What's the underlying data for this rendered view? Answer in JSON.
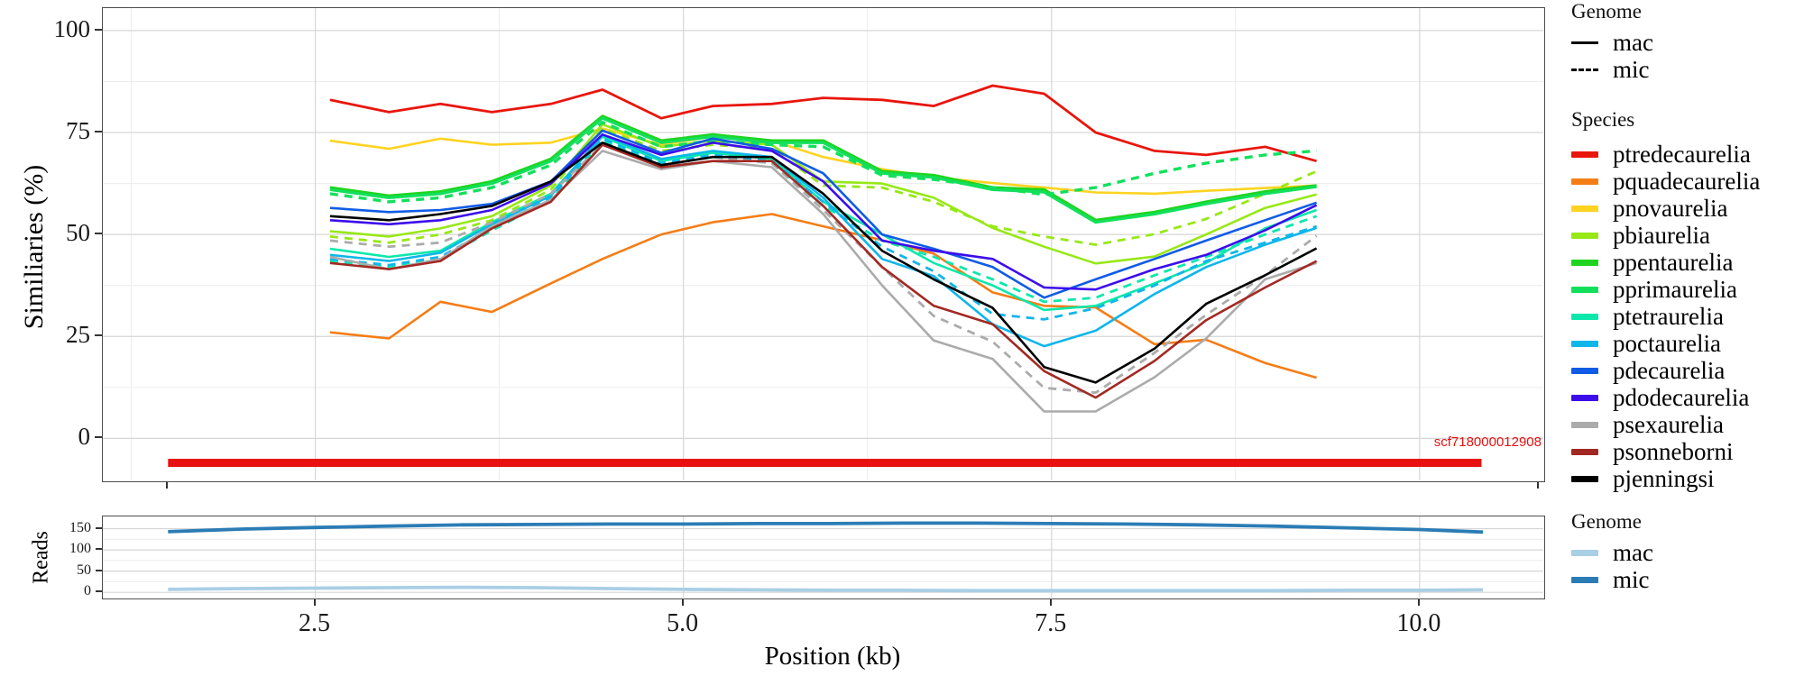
{
  "figure": {
    "y_axis_title_main": "Similiaries (%)",
    "y_axis_title_reads": "Reads",
    "x_axis_title": "Position (kb)",
    "scaffold_label": "scf718000012908",
    "colors": {
      "scaffold_bar": "#e81010",
      "panel_border": "#4d4d4d",
      "grid_major": "#d6d6d6",
      "grid_minor": "#ececec"
    }
  },
  "legends": [
    {
      "title": "Genome",
      "style": "line",
      "entries": [
        {
          "label": "mac",
          "dash": false,
          "color": "#000000"
        },
        {
          "label": "mic",
          "dash": true,
          "color": "#000000"
        }
      ]
    },
    {
      "title": "Species",
      "style": "block",
      "entries": [
        {
          "label": "ptredecaurelia",
          "color": "#e8160c"
        },
        {
          "label": "pquadecaurelia",
          "color": "#f57d15"
        },
        {
          "label": "pnovaurelia",
          "color": "#ffd320"
        },
        {
          "label": "pbiaurelia",
          "color": "#97e816"
        },
        {
          "label": "ppentaurelia",
          "color": "#1fd41f"
        },
        {
          "label": "pprimaurelia",
          "color": "#12e05c"
        },
        {
          "label": "ptetraurelia",
          "color": "#0ce8ac"
        },
        {
          "label": "poctaurelia",
          "color": "#0fb6ea"
        },
        {
          "label": "pdecaurelia",
          "color": "#105ce6"
        },
        {
          "label": "pdodecaurelia",
          "color": "#3c0ceb"
        },
        {
          "label": "psexaurelia",
          "color": "#ababab"
        },
        {
          "label": "psonneborni",
          "color": "#a22923"
        },
        {
          "label": "pjenningsi",
          "color": "#000000"
        }
      ]
    },
    {
      "title": "Genome",
      "style": "block",
      "entries": [
        {
          "label": "mac",
          "color": "#a9cfe5"
        },
        {
          "label": "mic",
          "color": "#2b7cb5"
        }
      ]
    }
  ],
  "chart_data": [
    {
      "type": "line",
      "panel": "similarity",
      "title": "",
      "xlabel": "Position (kb)",
      "ylabel": "Similiaries (%)",
      "xlim": [
        1.057,
        10.84
      ],
      "ylim": [
        -10.3,
        105.5
      ],
      "x_major_ticks": [
        2.5,
        5.0,
        7.5,
        10.0
      ],
      "x_tick_labels": [
        "2.5",
        "5.0",
        "7.5",
        "10.0"
      ],
      "x_minor_ticks": [
        1.25,
        3.75,
        6.25,
        8.75
      ],
      "y_major_ticks": [
        0,
        25,
        50,
        75,
        100
      ],
      "y_tick_labels": [
        "0",
        "25",
        "50",
        "75",
        "100"
      ],
      "y_minor_ticks": [
        12.5,
        37.5,
        62.5,
        87.5
      ],
      "extra_axis_ticks_kb": [
        1.5,
        10.81
      ],
      "grid": true,
      "legend_position": "right",
      "x": [
        2.6,
        3.0,
        3.35,
        3.7,
        4.1,
        4.45,
        4.85,
        5.2,
        5.6,
        5.95,
        6.35,
        6.7,
        7.1,
        7.45,
        7.8,
        8.2,
        8.55,
        8.95,
        9.3
      ],
      "series": [
        {
          "name": "ptredecaurelia",
          "genome": "mac",
          "color": "#e8160c",
          "width": 2.8,
          "values": [
            83,
            80,
            82,
            80,
            82,
            85.5,
            78.5,
            81.5,
            82,
            83.5,
            83,
            81.5,
            86.5,
            84.5,
            75,
            70.5,
            69.5,
            71.5,
            68
          ]
        },
        {
          "name": "pquadecaurelia",
          "genome": "mac",
          "color": "#f57d15",
          "width": 2.6,
          "values": [
            26,
            24.5,
            33.5,
            31,
            38,
            44,
            50,
            53,
            55,
            52,
            48.6,
            45.3,
            35.8,
            32.5,
            32.1,
            23.1,
            24.2,
            18.5,
            14.9
          ]
        },
        {
          "name": "pnovaurelia",
          "genome": "mac",
          "color": "#ffd320",
          "width": 2.6,
          "values": [
            73,
            71,
            73.5,
            72,
            72.5,
            76,
            72,
            74,
            73,
            69,
            66,
            64,
            62.6,
            61.5,
            60.3,
            60,
            60.7,
            61.4,
            62
          ]
        },
        {
          "name": "pbiaurelia",
          "genome": "mac",
          "color": "#97e816",
          "width": 2.6,
          "values": [
            50.8,
            49.5,
            51.5,
            54.5,
            62,
            77,
            71.5,
            73,
            72,
            63,
            62.5,
            59,
            51.6,
            47,
            42.9,
            44.6,
            50,
            56.5,
            59.8
          ]
        },
        {
          "name": "pbiaurelia",
          "genome": "mic",
          "color": "#97e816",
          "width": 2.8,
          "values": [
            49.5,
            48,
            50,
            53.5,
            61,
            76,
            70.5,
            72,
            71,
            62,
            61.5,
            58,
            52,
            49.5,
            47.5,
            50.1,
            53.8,
            60,
            65.5
          ]
        },
        {
          "name": "ppentaurelia",
          "genome": "mac",
          "color": "#1fd41f",
          "width": 3.2,
          "values": [
            61.5,
            59.5,
            60.5,
            63,
            68.5,
            79,
            73,
            74.5,
            73,
            73,
            65.5,
            64.5,
            61.5,
            61,
            53.5,
            55.5,
            58,
            60.5,
            62
          ]
        },
        {
          "name": "pprimaurelia",
          "genome": "mac",
          "color": "#12e05c",
          "width": 3.2,
          "values": [
            61,
            59,
            60,
            62.5,
            68,
            78.5,
            72.5,
            74,
            72.5,
            72.5,
            65,
            64,
            61,
            60.4,
            53,
            55,
            57.5,
            60,
            61.7
          ]
        },
        {
          "name": "pprimaurelia",
          "genome": "mic",
          "color": "#12e05c",
          "width": 3.4,
          "values": [
            60,
            58,
            59,
            61.5,
            67,
            77.5,
            71.5,
            73,
            72,
            71.5,
            64.5,
            63.5,
            61.5,
            59.8,
            61.5,
            65,
            67.5,
            69.5,
            70.5
          ]
        },
        {
          "name": "ptetraurelia",
          "genome": "mac",
          "color": "#0ce8ac",
          "width": 2.6,
          "values": [
            46.5,
            44.5,
            46,
            53,
            60,
            74,
            68,
            70,
            68.5,
            58,
            50,
            43,
            37.5,
            31.5,
            32.5,
            38,
            43,
            51.5,
            56
          ]
        },
        {
          "name": "ptetraurelia",
          "genome": "mic",
          "color": "#0ce8ac",
          "width": 2.8,
          "values": [
            43.5,
            42,
            44,
            51,
            58.5,
            73,
            67,
            69,
            67.5,
            57,
            48.5,
            44.5,
            39,
            33.5,
            34.5,
            40,
            44.5,
            50,
            54.5
          ]
        },
        {
          "name": "poctaurelia",
          "genome": "mac",
          "color": "#0fb6ea",
          "width": 2.6,
          "values": [
            45,
            43.5,
            45.5,
            52.5,
            59.5,
            74.5,
            68.5,
            70.5,
            69,
            59,
            44,
            39.8,
            28,
            22.6,
            26.4,
            35.4,
            42,
            47.5,
            51.6
          ]
        },
        {
          "name": "poctaurelia",
          "genome": "mic",
          "color": "#0fb6ea",
          "width": 2.8,
          "values": [
            44,
            42.5,
            44.5,
            51.5,
            59,
            73.5,
            67.5,
            69.5,
            68,
            58,
            47,
            41,
            30.5,
            29.2,
            31.9,
            37.5,
            43.5,
            48,
            52
          ]
        },
        {
          "name": "pdecaurelia",
          "genome": "mac",
          "color": "#105ce6",
          "width": 2.6,
          "values": [
            56.5,
            55.5,
            56,
            57.5,
            63,
            75.5,
            70,
            73.5,
            71,
            65,
            50,
            46.5,
            42,
            34.5,
            39,
            44,
            48.5,
            53.5,
            57.8
          ]
        },
        {
          "name": "pdodecaurelia",
          "genome": "mac",
          "color": "#3c0ceb",
          "width": 2.6,
          "values": [
            53.5,
            52.5,
            53.5,
            56,
            62.5,
            74.5,
            69.5,
            72.5,
            70.5,
            63,
            48.5,
            46,
            44,
            37,
            36.5,
            41.5,
            45,
            51,
            57.2
          ]
        },
        {
          "name": "psexaurelia",
          "genome": "mac",
          "color": "#ababab",
          "width": 2.6,
          "values": [
            44.5,
            41.5,
            44,
            52,
            58.5,
            70.5,
            66,
            68,
            66.5,
            55,
            37.5,
            24,
            19.5,
            6.6,
            6.6,
            15,
            24.5,
            39,
            43
          ]
        },
        {
          "name": "psexaurelia",
          "genome": "mic",
          "color": "#ababab",
          "width": 2.8,
          "values": [
            48.5,
            47,
            48,
            53,
            60,
            72,
            67,
            69,
            67.5,
            56,
            42,
            30,
            23.7,
            12.4,
            11.2,
            21,
            30.3,
            40,
            49.7
          ]
        },
        {
          "name": "psonneborni",
          "genome": "mac",
          "color": "#a22923",
          "width": 2.6,
          "values": [
            43,
            41.5,
            43.5,
            51.5,
            58,
            72,
            66.5,
            68,
            68,
            57,
            42,
            32.5,
            28,
            16.5,
            10,
            19,
            29,
            37,
            43.5
          ]
        },
        {
          "name": "pjenningsi",
          "genome": "mac",
          "color": "#000000",
          "width": 2.6,
          "values": [
            54.5,
            53.5,
            55,
            57,
            63,
            72.5,
            67,
            69,
            69,
            60,
            46,
            39,
            32,
            17.5,
            13.7,
            22,
            33,
            40,
            46.6
          ]
        }
      ],
      "scaffold_bar": {
        "label": "scf718000012908",
        "x0": 1.5,
        "x1": 10.42,
        "y": -6,
        "thickness_units": 2,
        "color": "#e81010"
      }
    },
    {
      "type": "line",
      "panel": "reads",
      "title": "",
      "xlabel": "Position (kb)",
      "ylabel": "Reads",
      "xlim": [
        1.057,
        10.84
      ],
      "ylim": [
        -12.3,
        178.8
      ],
      "x_major_ticks": [
        2.5,
        5.0,
        7.5,
        10.0
      ],
      "y_major_ticks": [
        0,
        50,
        100,
        150
      ],
      "y_tick_labels": [
        "0",
        "50",
        "100",
        "150"
      ],
      "y_minor_ticks": [
        25,
        75,
        125
      ],
      "grid": true,
      "x": [
        1.5,
        2.0,
        2.5,
        3.0,
        3.5,
        4.0,
        4.5,
        5.0,
        5.5,
        6.0,
        6.5,
        7.0,
        7.5,
        8.0,
        8.5,
        9.0,
        9.5,
        10.0,
        10.43
      ],
      "series": [
        {
          "name": "mac",
          "color": "#a9cfe5",
          "width": 3.8,
          "values": [
            7,
            9,
            10,
            11,
            12,
            11,
            9,
            7,
            6,
            5,
            5,
            4,
            4,
            4,
            4,
            4,
            5,
            5,
            6
          ]
        },
        {
          "name": "mic",
          "color": "#2b7cb5",
          "width": 3.8,
          "values": [
            143,
            149,
            153,
            156,
            159,
            160,
            161,
            161,
            162,
            162,
            163,
            163,
            162,
            161,
            159,
            156,
            152,
            148,
            142
          ]
        }
      ]
    }
  ]
}
